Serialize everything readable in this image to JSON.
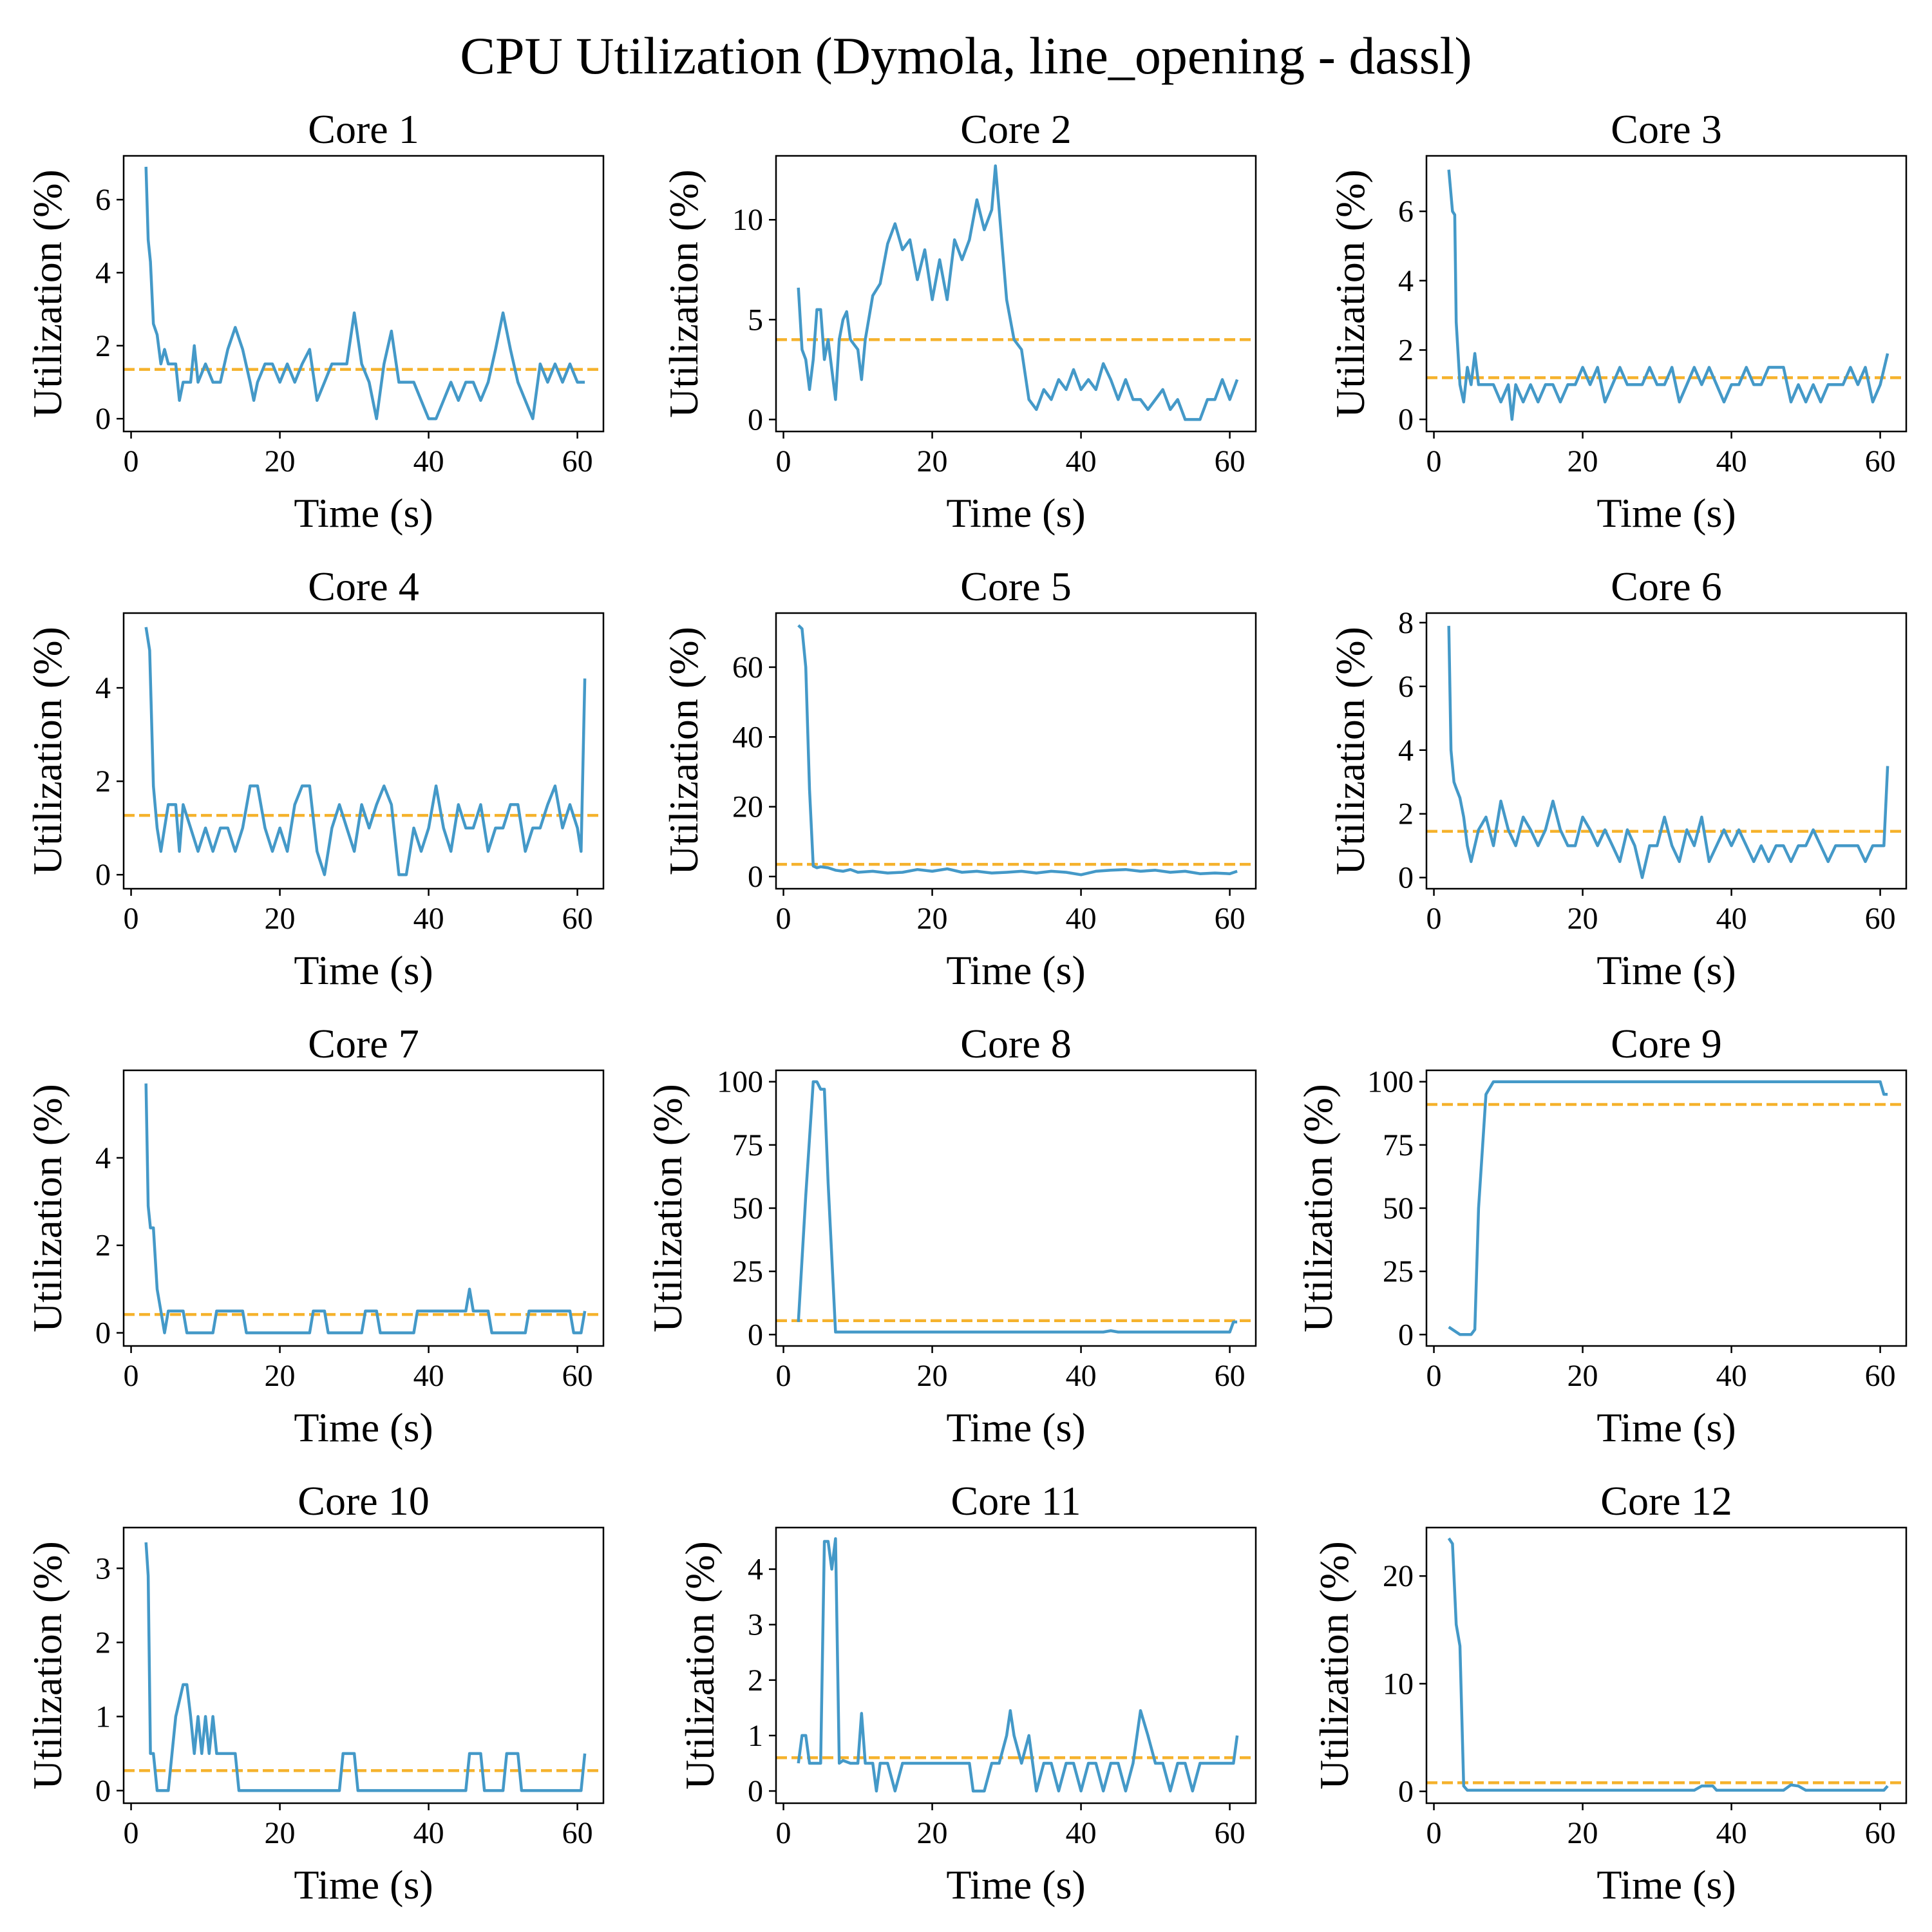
{
  "title": "CPU Utilization (Dymola, line_opening - dassl)",
  "colors": {
    "series": "#4499C8",
    "mean": "#F5B22C"
  },
  "chart_data": [
    {
      "type": "line",
      "title": "Core 1",
      "xlabel": "Time (s)",
      "ylabel": "Utilization (%)",
      "xlim": [
        -1,
        63.5
      ],
      "ylim": [
        -0.35,
        7.2
      ],
      "xticks": [
        0,
        20,
        40,
        60
      ],
      "yticks": [
        0,
        2,
        4,
        6
      ],
      "mean": 1.35,
      "x": [
        2,
        2.3,
        2.6,
        3,
        3.5,
        4,
        4.5,
        5,
        6,
        6.5,
        7,
        8,
        8.5,
        9,
        10,
        11,
        12,
        13,
        14,
        15,
        16,
        16.5,
        17,
        18,
        19,
        20,
        21,
        22,
        23,
        24,
        25,
        26,
        27,
        28,
        29,
        30,
        31,
        32,
        33,
        34,
        35,
        36,
        37,
        38,
        39,
        40,
        41,
        42,
        43,
        44,
        45,
        46,
        47,
        48,
        49,
        50,
        51,
        52,
        53,
        54,
        55,
        56,
        57,
        58,
        59,
        60,
        61
      ],
      "y": [
        6.9,
        4.9,
        4.3,
        2.6,
        2.3,
        1.5,
        1.9,
        1.5,
        1.5,
        0.5,
        1.0,
        1.0,
        2.0,
        1.0,
        1.5,
        1.0,
        1.0,
        1.9,
        2.5,
        1.9,
        1.0,
        0.5,
        1.0,
        1.5,
        1.5,
        1.0,
        1.5,
        1.0,
        1.5,
        1.9,
        0.5,
        1.0,
        1.5,
        1.5,
        1.5,
        2.9,
        1.5,
        1.0,
        0.0,
        1.5,
        2.4,
        1.0,
        1.0,
        1.0,
        0.5,
        0.0,
        0.0,
        0.5,
        1.0,
        0.5,
        1.0,
        1.0,
        0.5,
        1.0,
        1.9,
        2.9,
        1.9,
        1.0,
        0.5,
        0.0,
        1.5,
        1.0,
        1.5,
        1.0,
        1.5,
        1.0,
        1.0
      ]
    },
    {
      "type": "line",
      "title": "Core 2",
      "xlabel": "Time (s)",
      "ylabel": "Utilization (%)",
      "xlim": [
        -1,
        63.5
      ],
      "ylim": [
        -0.6,
        13.2
      ],
      "xticks": [
        0,
        20,
        40,
        60
      ],
      "yticks": [
        0,
        5,
        10
      ],
      "mean": 4.0,
      "x": [
        2,
        2.5,
        3,
        3.5,
        4,
        4.5,
        5,
        5.5,
        6,
        7,
        7.5,
        8,
        8.5,
        9,
        10,
        10.5,
        11,
        12,
        13,
        14,
        15,
        16,
        17,
        18,
        19,
        20,
        21,
        22,
        23,
        24,
        25,
        26,
        27,
        28,
        28.5,
        29,
        30,
        31,
        32,
        33,
        34,
        35,
        36,
        37,
        38,
        39,
        40,
        41,
        42,
        43,
        44,
        45,
        46,
        47,
        48,
        49,
        50,
        51,
        52,
        53,
        54,
        55,
        56,
        57,
        58,
        59,
        60,
        61
      ],
      "y": [
        6.6,
        3.5,
        3.0,
        1.5,
        3.0,
        5.5,
        5.5,
        3.0,
        4.0,
        1.0,
        4.0,
        5.0,
        5.4,
        4.0,
        3.5,
        2.0,
        4.0,
        6.2,
        6.8,
        8.8,
        9.8,
        8.5,
        9.0,
        7.0,
        8.5,
        6.0,
        8.0,
        6.0,
        9.0,
        8.0,
        9.0,
        11.0,
        9.5,
        10.5,
        12.7,
        10.5,
        6.0,
        4.0,
        3.5,
        1.0,
        0.5,
        1.5,
        1.0,
        2.0,
        1.5,
        2.5,
        1.5,
        2.0,
        1.5,
        2.8,
        2.0,
        1.0,
        2.0,
        1.0,
        1.0,
        0.5,
        1.0,
        1.5,
        0.5,
        1.0,
        0.0,
        0.0,
        0.0,
        1.0,
        1.0,
        2.0,
        1.0,
        2.0
      ]
    },
    {
      "type": "line",
      "title": "Core 3",
      "xlabel": "Time (s)",
      "ylabel": "Utilization (%)",
      "xlim": [
        -1,
        63.5
      ],
      "ylim": [
        -0.35,
        7.6
      ],
      "xticks": [
        0,
        20,
        40,
        60
      ],
      "yticks": [
        0,
        2,
        4,
        6
      ],
      "mean": 1.2,
      "x": [
        2,
        2.5,
        2.8,
        3,
        3.5,
        4,
        4.5,
        5,
        5.5,
        6,
        7,
        8,
        9,
        10,
        10.5,
        11,
        12,
        13,
        14,
        15,
        16,
        17,
        18,
        19,
        20,
        21,
        22,
        23,
        24,
        25,
        26,
        27,
        28,
        29,
        30,
        31,
        32,
        33,
        34,
        35,
        36,
        37,
        38,
        39,
        40,
        41,
        42,
        43,
        44,
        45,
        46,
        47,
        48,
        49,
        50,
        51,
        52,
        53,
        54,
        55,
        56,
        57,
        58,
        59,
        60,
        61
      ],
      "y": [
        7.2,
        6.0,
        5.9,
        2.8,
        1.0,
        0.5,
        1.5,
        1.0,
        1.9,
        1.0,
        1.0,
        1.0,
        0.5,
        1.0,
        0.0,
        1.0,
        0.5,
        1.0,
        0.5,
        1.0,
        1.0,
        0.5,
        1.0,
        1.0,
        1.5,
        1.0,
        1.5,
        0.5,
        1.0,
        1.5,
        1.0,
        1.0,
        1.0,
        1.5,
        1.0,
        1.0,
        1.5,
        0.5,
        1.0,
        1.5,
        1.0,
        1.5,
        1.0,
        0.5,
        1.0,
        1.0,
        1.5,
        1.0,
        1.0,
        1.5,
        1.5,
        1.5,
        0.5,
        1.0,
        0.5,
        1.0,
        0.5,
        1.0,
        1.0,
        1.0,
        1.5,
        1.0,
        1.5,
        0.5,
        1.0,
        1.9
      ]
    },
    {
      "type": "line",
      "title": "Core 4",
      "xlabel": "Time (s)",
      "ylabel": "Utilization (%)",
      "xlim": [
        -1,
        63.5
      ],
      "ylim": [
        -0.3,
        5.6
      ],
      "xticks": [
        0,
        20,
        40,
        60
      ],
      "yticks": [
        0,
        2,
        4
      ],
      "mean": 1.27,
      "x": [
        2,
        2.5,
        3,
        3.5,
        4,
        4.5,
        5,
        6,
        6.5,
        7,
        8,
        9,
        10,
        11,
        12,
        13,
        14,
        15,
        16,
        17,
        18,
        19,
        20,
        21,
        22,
        23,
        24,
        25,
        26,
        27,
        28,
        29,
        30,
        31,
        32,
        33,
        34,
        35,
        36,
        37,
        38,
        39,
        40,
        41,
        42,
        43,
        44,
        45,
        46,
        47,
        48,
        49,
        50,
        51,
        52,
        53,
        54,
        55,
        56,
        57,
        58,
        59,
        60,
        60.5,
        61
      ],
      "y": [
        5.3,
        4.8,
        1.9,
        1.0,
        0.5,
        1.0,
        1.5,
        1.5,
        0.5,
        1.5,
        1.0,
        0.5,
        1.0,
        0.5,
        1.0,
        1.0,
        0.5,
        1.0,
        1.9,
        1.9,
        1.0,
        0.5,
        1.0,
        0.5,
        1.5,
        1.9,
        1.9,
        0.5,
        0.0,
        1.0,
        1.5,
        1.0,
        0.5,
        1.5,
        1.0,
        1.5,
        1.9,
        1.5,
        0.0,
        0.0,
        1.0,
        0.5,
        1.0,
        1.9,
        1.0,
        0.5,
        1.5,
        1.0,
        1.0,
        1.5,
        0.5,
        1.0,
        1.0,
        1.5,
        1.5,
        0.5,
        1.0,
        1.0,
        1.5,
        1.9,
        1.0,
        1.5,
        1.0,
        0.5,
        4.2
      ]
    },
    {
      "type": "line",
      "title": "Core 5",
      "xlabel": "Time (s)",
      "ylabel": "Utilization (%)",
      "xlim": [
        -1,
        63.5
      ],
      "ylim": [
        -3.5,
        75.5
      ],
      "xticks": [
        0,
        20,
        40,
        60
      ],
      "yticks": [
        0,
        20,
        40,
        60
      ],
      "mean": 3.5,
      "x": [
        2,
        2.5,
        3,
        3.5,
        4,
        4.5,
        5,
        6,
        7,
        8,
        9,
        10,
        12,
        14,
        16,
        18,
        20,
        22,
        24,
        26,
        28,
        30,
        32,
        34,
        36,
        38,
        40,
        42,
        44,
        46,
        48,
        50,
        52,
        54,
        56,
        58,
        60,
        61
      ],
      "y": [
        72,
        71,
        60,
        25,
        3,
        2.5,
        2.8,
        2.5,
        1.8,
        1.5,
        2.0,
        1.2,
        1.5,
        1.0,
        1.2,
        2.0,
        1.5,
        2.2,
        1.2,
        1.5,
        1.0,
        1.2,
        1.5,
        1.0,
        1.5,
        1.2,
        0.5,
        1.5,
        1.8,
        2.0,
        1.5,
        1.8,
        1.2,
        1.5,
        0.8,
        1.0,
        0.8,
        1.5
      ]
    },
    {
      "type": "line",
      "title": "Core 6",
      "xlabel": "Time (s)",
      "ylabel": "Utilization (%)",
      "xlim": [
        -1,
        63.5
      ],
      "ylim": [
        -0.35,
        8.3
      ],
      "xticks": [
        0,
        20,
        40,
        60
      ],
      "yticks": [
        0,
        2,
        4,
        6,
        8
      ],
      "mean": 1.45,
      "x": [
        2,
        2.3,
        2.7,
        3,
        3.5,
        4,
        4.5,
        5,
        6,
        7,
        8,
        9,
        10,
        11,
        12,
        13,
        14,
        15,
        16,
        17,
        18,
        19,
        20,
        21,
        22,
        23,
        24,
        25,
        26,
        27,
        28,
        29,
        30,
        31,
        32,
        33,
        34,
        35,
        36,
        37,
        38,
        39,
        40,
        41,
        42,
        43,
        44,
        45,
        46,
        47,
        48,
        49,
        50,
        51,
        52,
        53,
        54,
        55,
        56,
        57,
        58,
        59,
        60,
        60.5,
        61
      ],
      "y": [
        7.9,
        4.0,
        3.0,
        2.8,
        2.5,
        1.9,
        1.0,
        0.5,
        1.5,
        1.9,
        1.0,
        2.4,
        1.5,
        1.0,
        1.9,
        1.5,
        1.0,
        1.5,
        2.4,
        1.5,
        1.0,
        1.0,
        1.9,
        1.5,
        1.0,
        1.5,
        1.0,
        0.5,
        1.5,
        1.0,
        0.0,
        1.0,
        1.0,
        1.9,
        1.0,
        0.5,
        1.5,
        1.0,
        1.9,
        0.5,
        1.0,
        1.5,
        1.0,
        1.5,
        1.0,
        0.5,
        1.0,
        0.5,
        1.0,
        1.0,
        0.5,
        1.0,
        1.0,
        1.5,
        1.0,
        0.5,
        1.0,
        1.0,
        1.0,
        1.0,
        0.5,
        1.0,
        1.0,
        1.0,
        3.5
      ]
    },
    {
      "type": "line",
      "title": "Core 7",
      "xlabel": "Time (s)",
      "ylabel": "Utilization (%)",
      "xlim": [
        -1,
        63.5
      ],
      "ylim": [
        -0.3,
        6.0
      ],
      "xticks": [
        0,
        20,
        40,
        60
      ],
      "yticks": [
        0,
        2,
        4
      ],
      "mean": 0.42,
      "x": [
        2,
        2.3,
        2.6,
        3,
        3.5,
        4,
        4.5,
        5,
        7,
        7.5,
        11,
        11.5,
        15,
        15.5,
        24,
        24.5,
        26,
        26.5,
        31,
        31.5,
        33,
        33.5,
        38,
        38.5,
        41,
        41.5,
        45,
        45.5,
        46,
        46.5,
        48,
        48.5,
        53,
        53.5,
        54,
        54.5,
        59,
        59.5,
        60.5,
        61
      ],
      "y": [
        5.7,
        2.9,
        2.4,
        2.4,
        1.0,
        0.5,
        0.0,
        0.5,
        0.5,
        0.0,
        0.0,
        0.5,
        0.5,
        0.0,
        0.0,
        0.5,
        0.5,
        0.0,
        0.0,
        0.5,
        0.5,
        0.0,
        0.0,
        0.5,
        0.5,
        0.5,
        0.5,
        1.0,
        0.5,
        0.5,
        0.5,
        0.0,
        0.0,
        0.5,
        0.5,
        0.5,
        0.5,
        0.0,
        0.0,
        0.5
      ]
    },
    {
      "type": "line",
      "title": "Core 8",
      "xlabel": "Time (s)",
      "ylabel": "Utilization (%)",
      "xlim": [
        -1,
        63.5
      ],
      "ylim": [
        -4.5,
        104.5
      ],
      "xticks": [
        0,
        20,
        40,
        60
      ],
      "yticks": [
        0,
        25,
        50,
        75,
        100
      ],
      "mean": 5.5,
      "x": [
        2,
        3,
        4,
        4.5,
        5,
        5.5,
        6,
        7,
        8,
        10,
        20,
        30,
        40,
        43,
        44,
        45,
        50,
        55,
        60,
        60.5,
        61
      ],
      "y": [
        5,
        55,
        100,
        100,
        97,
        97,
        60,
        1,
        1,
        1,
        1,
        1,
        1,
        1,
        1.5,
        1,
        1,
        1,
        1,
        5,
        5
      ]
    },
    {
      "type": "line",
      "title": "Core 9",
      "xlabel": "Time (s)",
      "ylabel": "Utilization (%)",
      "xlim": [
        -1,
        63.5
      ],
      "ylim": [
        -4.5,
        104.5
      ],
      "xticks": [
        0,
        20,
        40,
        60
      ],
      "yticks": [
        0,
        25,
        50,
        75,
        100
      ],
      "mean": 91,
      "x": [
        2,
        3,
        3.5,
        5,
        5.5,
        6,
        7,
        8,
        20,
        40,
        60,
        60.5,
        61
      ],
      "y": [
        3,
        1,
        0,
        0,
        2,
        50,
        95,
        100,
        100,
        100,
        100,
        95,
        95
      ]
    },
    {
      "type": "line",
      "title": "Core 10",
      "xlabel": "Time (s)",
      "ylabel": "Utilization (%)",
      "xlim": [
        -1,
        63.5
      ],
      "ylim": [
        -0.17,
        3.55
      ],
      "xticks": [
        0,
        20,
        40,
        60
      ],
      "yticks": [
        0,
        1,
        2,
        3
      ],
      "mean": 0.27,
      "x": [
        2,
        2.3,
        2.6,
        3,
        3.5,
        5,
        5.5,
        6,
        7,
        7.5,
        8,
        8.5,
        9,
        9.5,
        10,
        10.5,
        11,
        11.5,
        12,
        12.5,
        14,
        14.5,
        15,
        28,
        28.5,
        30,
        30.5,
        45,
        45.5,
        47,
        47.5,
        50,
        50.5,
        52,
        52.5,
        60.5,
        61
      ],
      "y": [
        3.35,
        2.9,
        0.5,
        0.5,
        0.0,
        0.0,
        0.5,
        1.0,
        1.43,
        1.43,
        1.0,
        0.5,
        1.0,
        0.5,
        1.0,
        0.5,
        1.0,
        0.5,
        0.5,
        0.5,
        0.5,
        0.0,
        0.0,
        0.0,
        0.5,
        0.5,
        0.0,
        0.0,
        0.5,
        0.5,
        0.0,
        0.0,
        0.5,
        0.5,
        0.0,
        0.0,
        0.5
      ]
    },
    {
      "type": "line",
      "title": "Core 11",
      "xlabel": "Time (s)",
      "ylabel": "Utilization (%)",
      "xlim": [
        -1,
        63.5
      ],
      "ylim": [
        -0.22,
        4.75
      ],
      "xticks": [
        0,
        20,
        40,
        60
      ],
      "yticks": [
        0,
        1,
        2,
        3,
        4
      ],
      "mean": 0.6,
      "x": [
        2,
        2.5,
        3,
        3.5,
        5,
        5.5,
        6,
        6.5,
        7,
        7.5,
        8,
        9,
        10,
        10.5,
        11,
        12,
        12.5,
        13,
        14,
        15,
        16,
        25,
        25.5,
        27,
        28,
        29,
        30,
        30.5,
        31,
        32,
        33,
        34,
        35,
        36,
        37,
        38,
        39,
        40,
        41,
        42,
        43,
        44,
        45,
        46,
        47,
        48,
        49,
        50,
        51,
        52,
        53,
        54,
        55,
        56,
        57,
        58,
        59,
        60,
        60.5,
        61
      ],
      "y": [
        0.5,
        1.0,
        1.0,
        0.5,
        0.5,
        4.5,
        4.5,
        4.0,
        4.55,
        0.5,
        0.55,
        0.5,
        0.5,
        1.4,
        0.5,
        0.5,
        0.0,
        0.5,
        0.5,
        0.0,
        0.5,
        0.5,
        0.0,
        0.0,
        0.5,
        0.5,
        1.0,
        1.45,
        1.0,
        0.5,
        1.0,
        0.0,
        0.5,
        0.5,
        0.0,
        0.5,
        0.5,
        0.0,
        0.5,
        0.5,
        0.0,
        0.5,
        0.5,
        0.0,
        0.5,
        1.45,
        1.0,
        0.5,
        0.5,
        0.0,
        0.5,
        0.5,
        0.0,
        0.5,
        0.5,
        0.5,
        0.5,
        0.5,
        0.5,
        1.0
      ]
    },
    {
      "type": "line",
      "title": "Core 12",
      "xlabel": "Time (s)",
      "ylabel": "Utilization (%)",
      "xlim": [
        -1,
        63.5
      ],
      "ylim": [
        -1.1,
        24.5
      ],
      "xticks": [
        0,
        20,
        40,
        60
      ],
      "yticks": [
        0,
        10,
        20
      ],
      "mean": 0.8,
      "x": [
        2,
        2.5,
        3,
        3.5,
        4,
        4.5,
        10,
        20,
        30,
        35,
        36,
        37.5,
        38,
        40,
        45,
        47,
        48,
        49,
        50,
        55,
        60,
        60.5,
        61
      ],
      "y": [
        23.5,
        23,
        15.5,
        13.5,
        0.5,
        0.1,
        0.1,
        0.1,
        0.1,
        0.1,
        0.5,
        0.5,
        0.1,
        0.1,
        0.1,
        0.1,
        0.6,
        0.5,
        0.1,
        0.1,
        0.1,
        0.1,
        0.5
      ]
    }
  ]
}
